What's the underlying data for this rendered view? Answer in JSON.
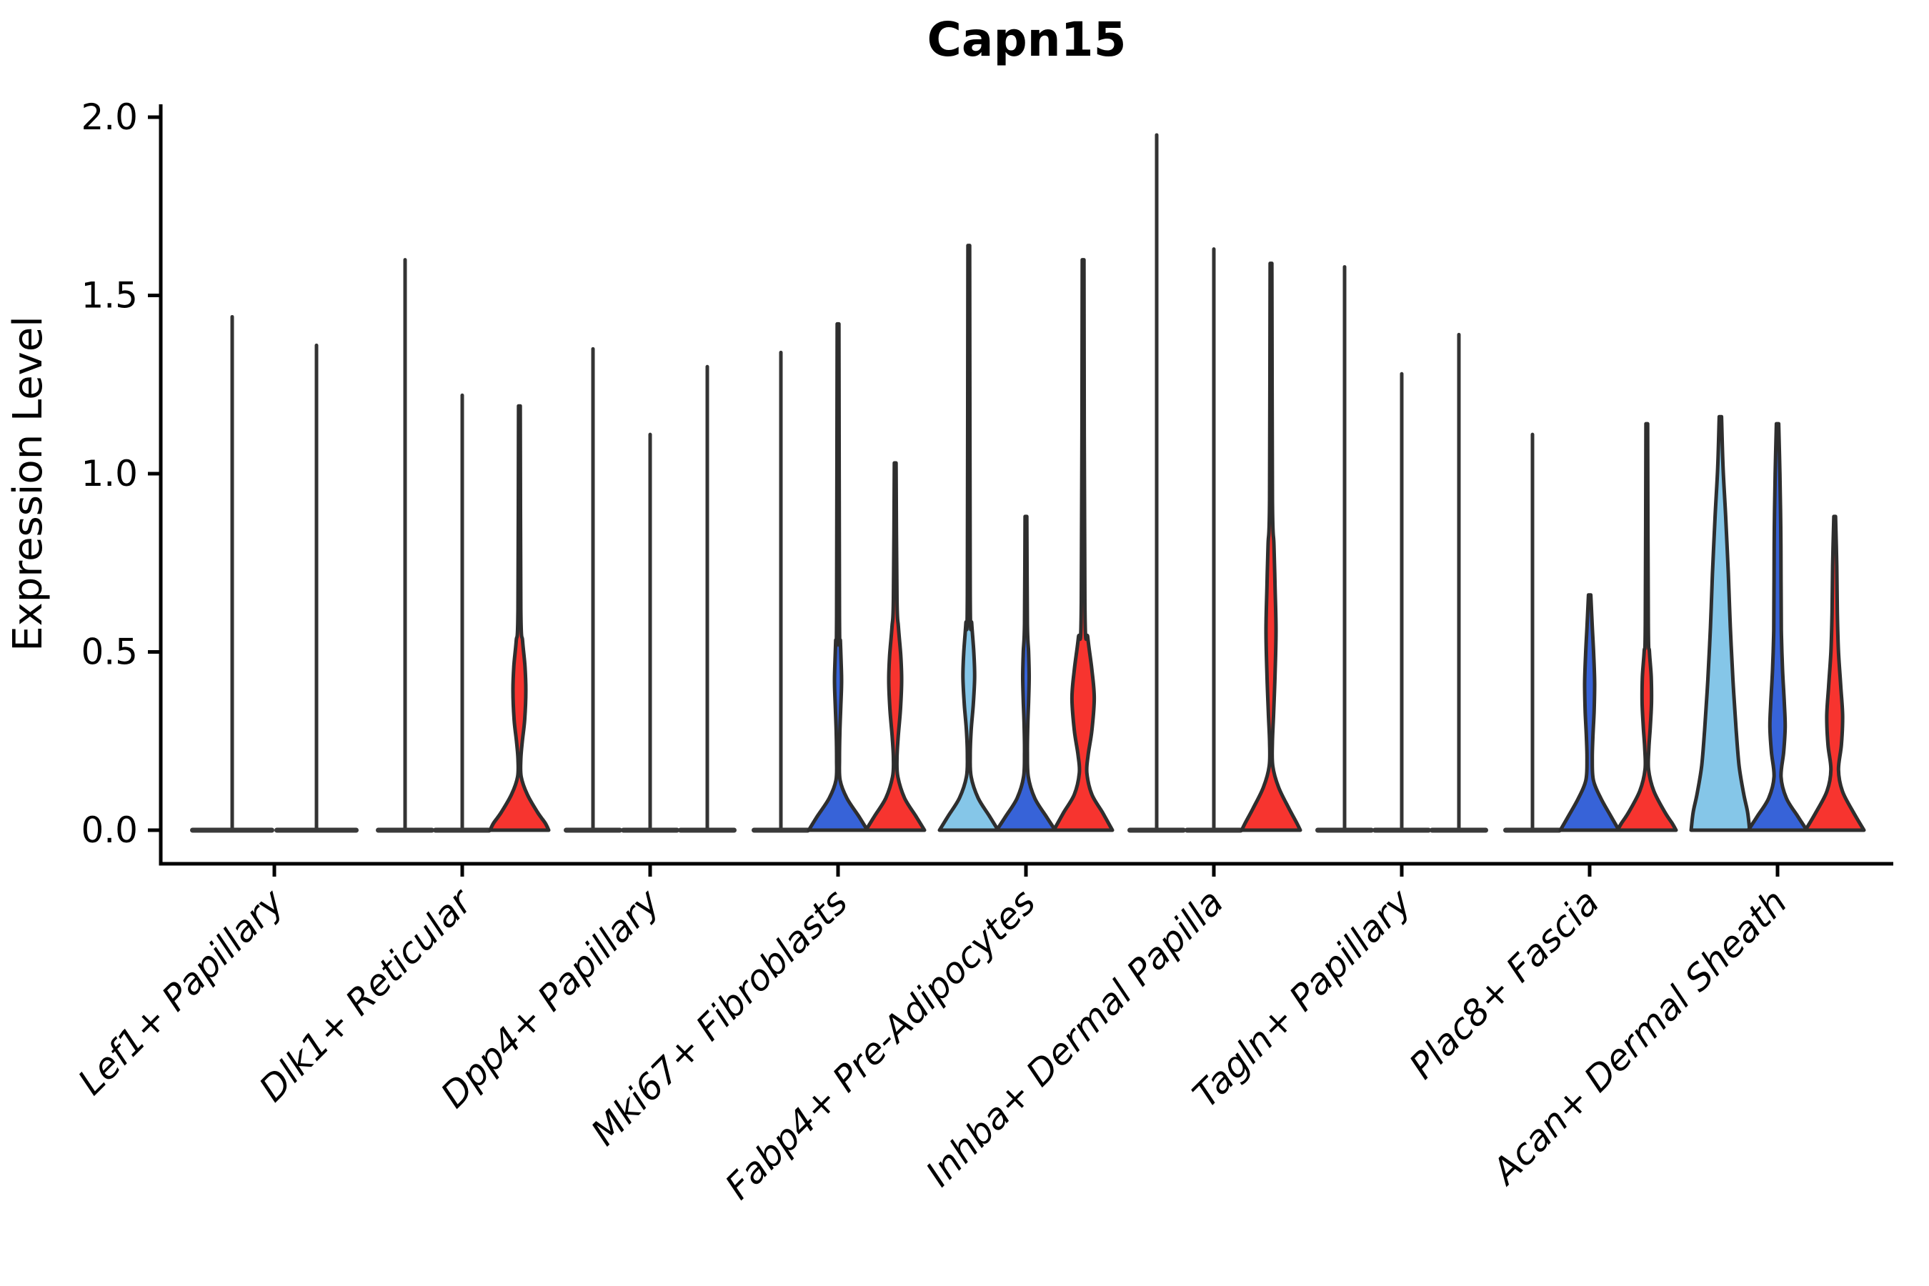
{
  "title": {
    "text": "Capn15"
  },
  "y_axis": {
    "label": "Expression Level",
    "tick_labels": [
      "0.0",
      "0.5",
      "1.0",
      "1.5",
      "2.0"
    ],
    "tick_values": [
      0.0,
      0.5,
      1.0,
      1.5,
      2.0
    ]
  },
  "palette": {
    "skyblue": "#85c6e8",
    "blue": "#3763d8",
    "red": "#f7342f",
    "violin_outline": "#2e2e2e",
    "collapsed_line": "#333333",
    "baseline": "#3a3a3a",
    "axis": "#000000",
    "background": "#ffffff"
  },
  "chart_data": {
    "type": "violin",
    "title": "Capn15",
    "ylabel": "Expression Level",
    "ylim": [
      0,
      2.0
    ],
    "yticks": [
      0.0,
      0.5,
      1.0,
      1.5,
      2.0
    ],
    "grid": false,
    "legend": "none",
    "categories": [
      "Lef1+ Papillary",
      "Dlk1+ Reticular",
      "Dpp4+ Papillary",
      "Mki67+ Fibroblasts",
      "Fabp4+ Pre-Adipocytes",
      "Inhba+ Dermal Papilla",
      "Tagln+ Papillary",
      "Plac8+ Fascia",
      "Acan+ Dermal Sheath"
    ],
    "groups": [
      {
        "category": "Lef1+ Papillary",
        "violins": [
          {
            "kind": "collapsed",
            "max": 1.44
          },
          {
            "kind": "collapsed",
            "max": 1.36
          }
        ]
      },
      {
        "category": "Dlk1+ Reticular",
        "violins": [
          {
            "kind": "collapsed",
            "max": 1.6
          },
          {
            "kind": "collapsed",
            "max": 1.22
          },
          {
            "kind": "violin",
            "color": "red",
            "max": 1.19,
            "profile": [
              [
                1.19,
                0.03
              ],
              [
                0.62,
                0.05
              ],
              [
                0.53,
                0.11
              ],
              [
                0.46,
                0.19
              ],
              [
                0.39,
                0.22
              ],
              [
                0.31,
                0.18
              ],
              [
                0.25,
                0.1
              ],
              [
                0.2,
                0.05
              ],
              [
                0.15,
                0.06
              ],
              [
                0.1,
                0.27
              ],
              [
                0.05,
                0.62
              ],
              [
                0.02,
                0.88
              ],
              [
                0,
                1
              ]
            ]
          }
        ]
      },
      {
        "category": "Dpp4+ Papillary",
        "violins": [
          {
            "kind": "collapsed",
            "max": 1.35
          },
          {
            "kind": "collapsed",
            "max": 1.11
          },
          {
            "kind": "collapsed",
            "max": 1.3
          }
        ]
      },
      {
        "category": "Mki67+ Fibroblasts",
        "violins": [
          {
            "kind": "collapsed",
            "max": 1.34
          },
          {
            "kind": "violin",
            "color": "blue",
            "max": 1.42,
            "profile": [
              [
                1.42,
                0.03
              ],
              [
                0.6,
                0.05
              ],
              [
                0.53,
                0.08
              ],
              [
                0.46,
                0.11
              ],
              [
                0.41,
                0.12
              ],
              [
                0.34,
                0.09
              ],
              [
                0.27,
                0.06
              ],
              [
                0.2,
                0.05
              ],
              [
                0.14,
                0.07
              ],
              [
                0.09,
                0.3
              ],
              [
                0.04,
                0.7
              ],
              [
                0,
                1
              ]
            ]
          },
          {
            "kind": "violin",
            "color": "red",
            "max": 1.03,
            "profile": [
              [
                1.03,
                0.03
              ],
              [
                0.65,
                0.06
              ],
              [
                0.57,
                0.11
              ],
              [
                0.49,
                0.19
              ],
              [
                0.42,
                0.22
              ],
              [
                0.34,
                0.18
              ],
              [
                0.26,
                0.1
              ],
              [
                0.2,
                0.06
              ],
              [
                0.15,
                0.09
              ],
              [
                0.09,
                0.32
              ],
              [
                0.04,
                0.7
              ],
              [
                0,
                1
              ]
            ]
          }
        ]
      },
      {
        "category": "Fabp4+ Pre-Adipocytes",
        "violins": [
          {
            "kind": "violin",
            "color": "skyblue",
            "max": 1.64,
            "profile": [
              [
                1.64,
                0.03
              ],
              [
                0.66,
                0.05
              ],
              [
                0.58,
                0.1
              ],
              [
                0.5,
                0.17
              ],
              [
                0.43,
                0.2
              ],
              [
                0.35,
                0.15
              ],
              [
                0.28,
                0.08
              ],
              [
                0.21,
                0.05
              ],
              [
                0.15,
                0.08
              ],
              [
                0.09,
                0.32
              ],
              [
                0.04,
                0.7
              ],
              [
                0,
                1
              ]
            ]
          },
          {
            "kind": "violin",
            "color": "blue",
            "max": 0.88,
            "profile": [
              [
                0.88,
                0.03
              ],
              [
                0.58,
                0.05
              ],
              [
                0.5,
                0.09
              ],
              [
                0.43,
                0.11
              ],
              [
                0.36,
                0.09
              ],
              [
                0.29,
                0.06
              ],
              [
                0.22,
                0.05
              ],
              [
                0.15,
                0.08
              ],
              [
                0.09,
                0.3
              ],
              [
                0.04,
                0.68
              ],
              [
                0,
                1
              ]
            ]
          },
          {
            "kind": "violin",
            "color": "red",
            "max": 1.6,
            "profile": [
              [
                1.6,
                0.03
              ],
              [
                0.64,
                0.06
              ],
              [
                0.54,
                0.16
              ],
              [
                0.45,
                0.3
              ],
              [
                0.37,
                0.38
              ],
              [
                0.28,
                0.3
              ],
              [
                0.21,
                0.17
              ],
              [
                0.16,
                0.13
              ],
              [
                0.1,
                0.3
              ],
              [
                0.05,
                0.66
              ],
              [
                0,
                1
              ]
            ]
          }
        ]
      },
      {
        "category": "Inhba+ Dermal Papilla",
        "violins": [
          {
            "kind": "collapsed",
            "max": 1.95
          },
          {
            "kind": "collapsed",
            "max": 1.63
          },
          {
            "kind": "violin",
            "color": "red",
            "max": 1.59,
            "profile": [
              [
                1.59,
                0.03
              ],
              [
                0.93,
                0.05
              ],
              [
                0.8,
                0.1
              ],
              [
                0.68,
                0.14
              ],
              [
                0.56,
                0.17
              ],
              [
                0.44,
                0.14
              ],
              [
                0.33,
                0.09
              ],
              [
                0.25,
                0.05
              ],
              [
                0.18,
                0.06
              ],
              [
                0.12,
                0.26
              ],
              [
                0.06,
                0.62
              ],
              [
                0.02,
                0.88
              ],
              [
                0,
                1
              ]
            ]
          }
        ]
      },
      {
        "category": "Tagln+ Papillary",
        "violins": [
          {
            "kind": "collapsed",
            "max": 1.58
          },
          {
            "kind": "collapsed",
            "max": 1.28
          },
          {
            "kind": "collapsed",
            "max": 1.39
          }
        ]
      },
      {
        "category": "Plac8+ Fascia",
        "violins": [
          {
            "kind": "collapsed",
            "max": 1.11
          },
          {
            "kind": "violin",
            "color": "blue",
            "max": 0.66,
            "profile": [
              [
                0.66,
                0.04
              ],
              [
                0.57,
                0.09
              ],
              [
                0.49,
                0.14
              ],
              [
                0.41,
                0.17
              ],
              [
                0.33,
                0.15
              ],
              [
                0.26,
                0.11
              ],
              [
                0.2,
                0.09
              ],
              [
                0.14,
                0.13
              ],
              [
                0.09,
                0.38
              ],
              [
                0.04,
                0.72
              ],
              [
                0,
                1
              ]
            ]
          },
          {
            "kind": "violin",
            "color": "red",
            "max": 1.14,
            "profile": [
              [
                1.14,
                0.03
              ],
              [
                0.58,
                0.05
              ],
              [
                0.5,
                0.09
              ],
              [
                0.43,
                0.15
              ],
              [
                0.36,
                0.16
              ],
              [
                0.29,
                0.12
              ],
              [
                0.23,
                0.07
              ],
              [
                0.17,
                0.06
              ],
              [
                0.11,
                0.24
              ],
              [
                0.05,
                0.62
              ],
              [
                0.02,
                0.86
              ],
              [
                0,
                1
              ]
            ]
          }
        ]
      },
      {
        "category": "Acan+ Dermal Sheath",
        "violins": [
          {
            "kind": "violin",
            "color": "skyblue",
            "max": 1.16,
            "profile": [
              [
                1.16,
                0.04
              ],
              [
                1.02,
                0.09
              ],
              [
                0.88,
                0.18
              ],
              [
                0.72,
                0.27
              ],
              [
                0.57,
                0.34
              ],
              [
                0.42,
                0.43
              ],
              [
                0.28,
                0.54
              ],
              [
                0.18,
                0.64
              ],
              [
                0.1,
                0.8
              ],
              [
                0.05,
                0.93
              ],
              [
                0,
                1
              ]
            ]
          },
          {
            "kind": "violin",
            "color": "blue",
            "max": 1.14,
            "profile": [
              [
                1.14,
                0.04
              ],
              [
                1.0,
                0.08
              ],
              [
                0.85,
                0.11
              ],
              [
                0.7,
                0.12
              ],
              [
                0.56,
                0.13
              ],
              [
                0.45,
                0.17
              ],
              [
                0.36,
                0.23
              ],
              [
                0.29,
                0.26
              ],
              [
                0.22,
                0.21
              ],
              [
                0.15,
                0.12
              ],
              [
                0.09,
                0.3
              ],
              [
                0.04,
                0.68
              ],
              [
                0,
                1
              ]
            ]
          },
          {
            "kind": "violin",
            "color": "red",
            "max": 0.88,
            "profile": [
              [
                0.88,
                0.03
              ],
              [
                0.74,
                0.07
              ],
              [
                0.61,
                0.09
              ],
              [
                0.5,
                0.13
              ],
              [
                0.4,
                0.21
              ],
              [
                0.32,
                0.27
              ],
              [
                0.24,
                0.23
              ],
              [
                0.17,
                0.13
              ],
              [
                0.11,
                0.26
              ],
              [
                0.05,
                0.64
              ],
              [
                0,
                1
              ]
            ]
          }
        ]
      }
    ]
  }
}
